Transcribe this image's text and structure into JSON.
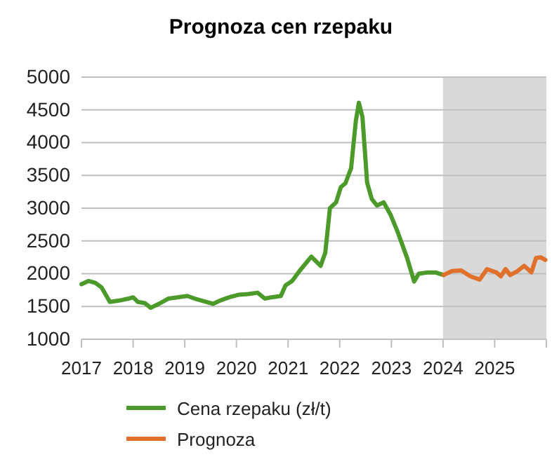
{
  "chart_data": {
    "type": "line",
    "title": "Prognoza cen rzepaku",
    "xlim": [
      2017,
      2026
    ],
    "xticks": [
      2017,
      2018,
      2019,
      2020,
      2021,
      2022,
      2023,
      2024,
      2025,
      {
        "value": 2026,
        "label": null
      }
    ],
    "ylim": [
      1000,
      5000
    ],
    "yticks": [
      1000,
      1500,
      2000,
      2500,
      3000,
      3500,
      4000,
      4500,
      5000
    ],
    "grid": "y",
    "legend": "bottom",
    "line_style": "solid",
    "marker": "none",
    "bands": [
      {
        "axis": "x",
        "from": 2024,
        "to": 2026,
        "color": "#d9d9d9"
      }
    ],
    "series": [
      {
        "name": "Cena rzepaku (zł/t)",
        "color": "#4c9a2a",
        "x": [
          2017.0,
          2017.14,
          2017.27,
          2017.39,
          2017.55,
          2017.73,
          2017.91,
          2018.0,
          2018.09,
          2018.23,
          2018.34,
          2018.5,
          2018.68,
          2018.86,
          2019.05,
          2019.23,
          2019.41,
          2019.55,
          2019.68,
          2019.86,
          2020.05,
          2020.23,
          2020.41,
          2020.55,
          2020.68,
          2020.86,
          2020.95,
          2021.08,
          2021.22,
          2021.45,
          2021.63,
          2021.72,
          2021.81,
          2021.93,
          2022.02,
          2022.11,
          2022.22,
          2022.31,
          2022.37,
          2022.44,
          2022.53,
          2022.62,
          2022.72,
          2022.85,
          2022.99,
          2023.12,
          2023.3,
          2023.44,
          2023.53,
          2023.71,
          2023.85,
          2024.01
        ],
        "values": [
          1840,
          1890,
          1860,
          1790,
          1570,
          1590,
          1620,
          1640,
          1570,
          1550,
          1480,
          1540,
          1620,
          1640,
          1660,
          1610,
          1570,
          1540,
          1590,
          1640,
          1680,
          1690,
          1710,
          1620,
          1640,
          1660,
          1820,
          1890,
          2040,
          2260,
          2120,
          2320,
          3000,
          3090,
          3320,
          3380,
          3610,
          4320,
          4610,
          4390,
          3390,
          3140,
          3040,
          3090,
          2890,
          2640,
          2250,
          1880,
          2000,
          2020,
          2020,
          1980
        ]
      },
      {
        "name": "Prognoza",
        "color": "#e0702a",
        "x": [
          2024.01,
          2024.17,
          2024.35,
          2024.53,
          2024.71,
          2024.85,
          2025.03,
          2025.12,
          2025.21,
          2025.3,
          2025.44,
          2025.57,
          2025.71,
          2025.8,
          2025.89,
          2025.98
        ],
        "values": [
          1980,
          2040,
          2050,
          1960,
          1910,
          2070,
          2020,
          1960,
          2070,
          1980,
          2040,
          2120,
          2020,
          2240,
          2250,
          2210
        ]
      }
    ]
  }
}
